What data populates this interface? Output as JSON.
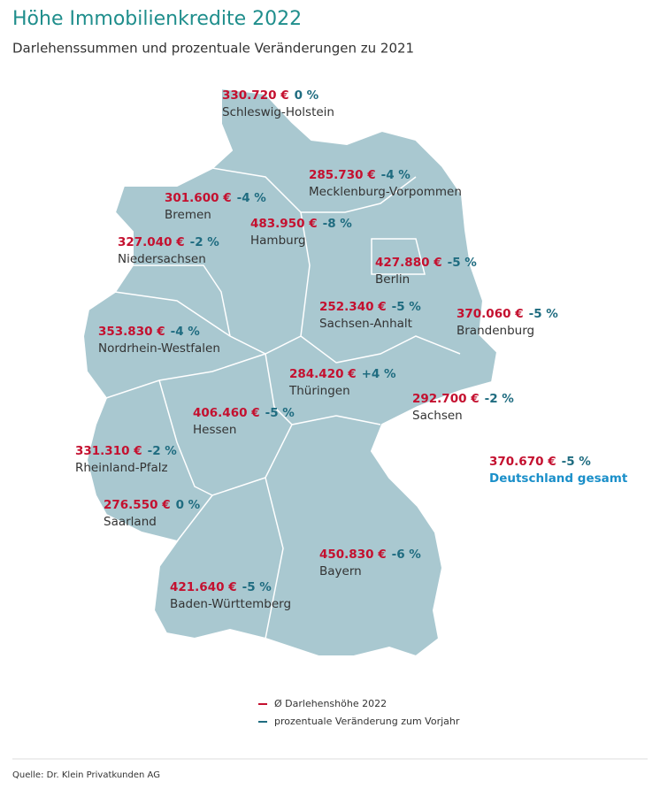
{
  "header": {
    "title": "Höhe Immobilienkredite 2022",
    "subtitle": "Darlehenssummen und prozentuale Veränderungen zu 2021"
  },
  "regions": [
    {
      "name": "Schleswig-Holstein",
      "amount": "330.720 €",
      "change": "0 %"
    },
    {
      "name": "Mecklenburg-Vorpommen",
      "amount": "285.730 €",
      "change": "-4 %"
    },
    {
      "name": "Bremen",
      "amount": "301.600 €",
      "change": "-4 %"
    },
    {
      "name": "Hamburg",
      "amount": "483.950 €",
      "change": "-8 %"
    },
    {
      "name": "Niedersachsen",
      "amount": "327.040 €",
      "change": "-2 %"
    },
    {
      "name": "Berlin",
      "amount": "427.880 €",
      "change": "-5 %"
    },
    {
      "name": "Sachsen-Anhalt",
      "amount": "252.340 €",
      "change": "-5 %"
    },
    {
      "name": "Brandenburg",
      "amount": "370.060 €",
      "change": "-5 %"
    },
    {
      "name": "Nordrhein-Westfalen",
      "amount": "353.830 €",
      "change": "-4 %"
    },
    {
      "name": "Thüringen",
      "amount": "284.420 €",
      "change": "+4 %"
    },
    {
      "name": "Hessen",
      "amount": "406.460 €",
      "change": "-5 %"
    },
    {
      "name": "Sachsen",
      "amount": "292.700 €",
      "change": "-2 %"
    },
    {
      "name": "Rheinland-Pfalz",
      "amount": "331.310 €",
      "change": "-2 %"
    },
    {
      "name": "Saarland",
      "amount": "276.550 €",
      "change": "0 %"
    },
    {
      "name": "Bayern",
      "amount": "450.830 €",
      "change": "-6 %"
    },
    {
      "name": "Baden-Württemberg",
      "amount": "421.640 €",
      "change": "-5 %"
    }
  ],
  "total": {
    "amount": "370.670 €",
    "change": "-5 %",
    "name": "Deutschland gesamt"
  },
  "legend": {
    "amount": "Ø Darlehenshöhe 2022",
    "change": "prozentuale Veränderung zum Vorjahr"
  },
  "footer": {
    "source": "Quelle: Dr. Klein Privatkunden AG"
  }
}
